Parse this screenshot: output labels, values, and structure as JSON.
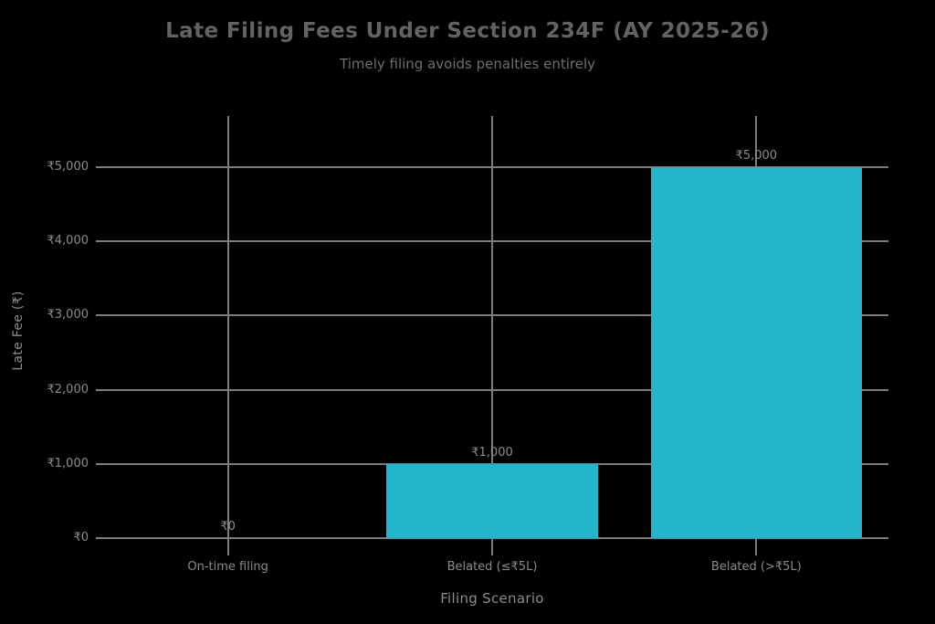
{
  "header": {
    "title": "Late Filing Fees Under Section 234F (AY 2025-26)",
    "subtitle": "Timely filing avoids penalties entirely"
  },
  "chart_data": {
    "type": "bar",
    "title": "Late Filing Fees Under Section 234F (AY 2025-26)",
    "subtitle": "Timely filing avoids penalties entirely",
    "xlabel": "Filing Scenario",
    "ylabel": "Late Fee (₹)",
    "categories": [
      "On-time filing",
      "Belated (≤₹5L)",
      "Belated (>₹5L)"
    ],
    "values": [
      0,
      1000,
      5000
    ],
    "data_labels": [
      "₹0",
      "₹1,000",
      "₹5,000"
    ],
    "ylim": [
      0,
      5000
    ],
    "yticks": [
      0,
      1000,
      2000,
      3000,
      4000,
      5000
    ],
    "ytick_labels": [
      "₹0",
      "₹1,000",
      "₹2,000",
      "₹3,000",
      "₹4,000",
      "₹5,000"
    ],
    "grid": true,
    "legend": false,
    "colors": {
      "background": "#000000",
      "bar": "#23b5cc",
      "grid": "#7d7d7d",
      "title": "#636363",
      "tick_label": "#8b8b8b"
    }
  }
}
